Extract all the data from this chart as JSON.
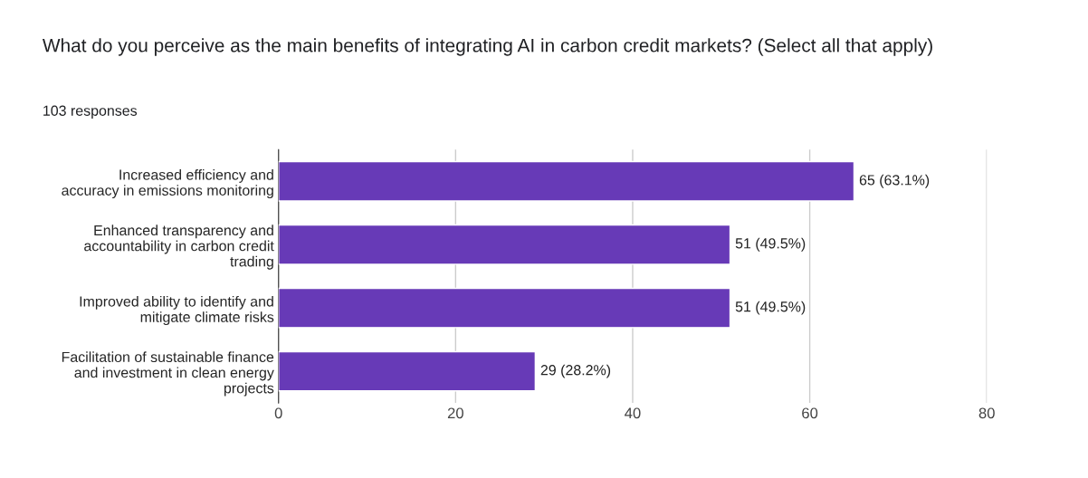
{
  "chart_data": {
    "type": "bar",
    "orientation": "horizontal",
    "title": "What do you perceive as the main benefits of integrating AI in carbon credit markets? (Select all that apply)",
    "subtitle": "103 responses",
    "categories": [
      "Increased efficiency and\naccuracy in emissions monitoring",
      "Enhanced transparency and\naccountability in carbon credit\ntrading",
      "Improved ability to identify and\nmitigate climate risks",
      "Facilitation of sustainable finance\nand investment in clean energy\nprojects"
    ],
    "values": [
      65,
      51,
      51,
      29
    ],
    "value_labels": [
      "65 (63.1%)",
      "51 (49.5%)",
      "51 (49.5%)",
      "29 (28.2%)"
    ],
    "color": "#673ab7",
    "xlim": [
      0,
      80
    ],
    "xticks": [
      0,
      20,
      40,
      60,
      80
    ],
    "grid": "x",
    "legend": false
  }
}
